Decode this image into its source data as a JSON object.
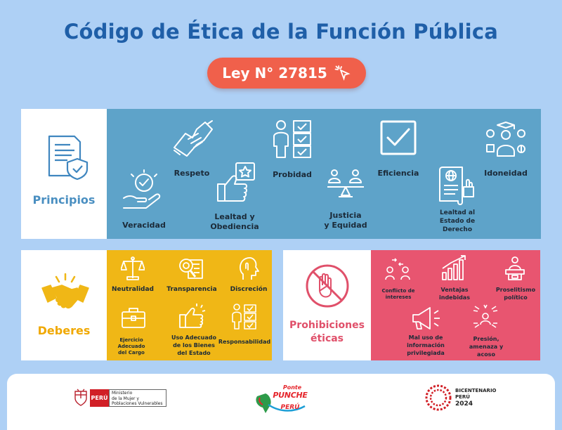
{
  "header": {
    "title": "Código de Ética de la Función Pública",
    "law_label": "Ley N° 27815"
  },
  "principios": {
    "label": "Principios",
    "items": [
      "Veracidad",
      "Respeto",
      "Lealtad y",
      "Obediencia",
      "Probidad",
      "Justicia",
      "y Equidad",
      "Eficiencia",
      "Lealtad al",
      "Estado de",
      "Derecho",
      "Idoneidad"
    ]
  },
  "deberes": {
    "label": "Deberes",
    "items": [
      "Neutralidad",
      "Transparencia",
      "Discreción",
      "Ejercicio",
      "Adecuado",
      "del Cargo",
      "Uso Adecuado",
      "de los Bienes",
      "del Estado",
      "Responsabilidad"
    ]
  },
  "prohibiciones": {
    "label_line1": "Prohibiciones",
    "label_line2": "éticas",
    "items": [
      "Conflicto de",
      "intereses",
      "Ventajas",
      "indebidas",
      "Proselitismo",
      "político",
      "Mal uso de",
      "información",
      "privilegiada",
      "Presión,",
      "amenaza y",
      "acoso"
    ]
  },
  "footer": {
    "ministry_badge": "PERÚ",
    "ministry_line1": "Ministerio",
    "ministry_line2": "de la Mujer y",
    "ministry_line3": "Poblaciones Vulnerables",
    "campaign_line1": "Ponte",
    "campaign_line2": "PUNCHE",
    "campaign_line3": "PERÚ",
    "bicentenario_line1": "BICENTENARIO",
    "bicentenario_line2": "PERÚ",
    "bicentenario_line3": "2024"
  },
  "colors": {
    "background": "#aed0f5",
    "title": "#1f5fa8",
    "pill": "#f0604b",
    "principios_panel": "#5ea3c9",
    "deberes_panel": "#f0b716",
    "prohibiciones_panel": "#e85570"
  }
}
